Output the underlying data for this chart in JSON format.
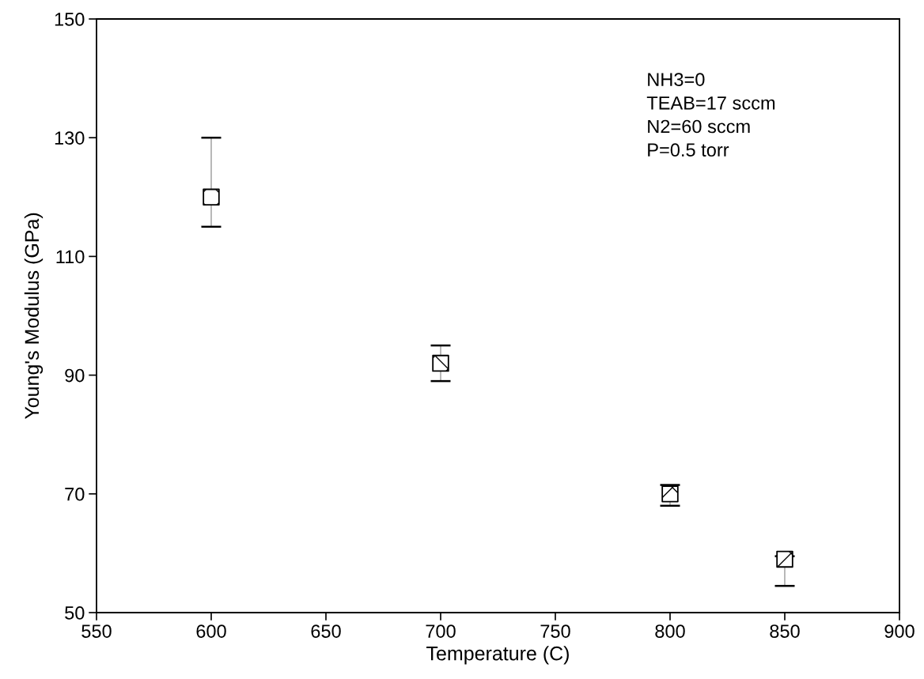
{
  "chart_data": {
    "type": "scatter",
    "xlabel": "Temperature (C)",
    "ylabel": "Young's Modulus (GPa)",
    "x": [
      600,
      700,
      800,
      850
    ],
    "values": [
      120,
      92,
      70,
      59
    ],
    "errors": [
      [
        115,
        130
      ],
      [
        89,
        95
      ],
      [
        68,
        71.5
      ],
      [
        54.5,
        59.5
      ]
    ],
    "color": "#000000",
    "marker": "square",
    "xlim": [
      550,
      900
    ],
    "xticks": [
      550,
      600,
      650,
      700,
      750,
      800,
      850,
      900
    ],
    "ylim": [
      50,
      150
    ],
    "yticks": [
      50,
      70,
      90,
      110,
      130,
      150
    ],
    "annotations": [
      "NH3=0\nTEAB=17 sccm\nN2=60 sccm\nP=0.5 torr"
    ]
  }
}
